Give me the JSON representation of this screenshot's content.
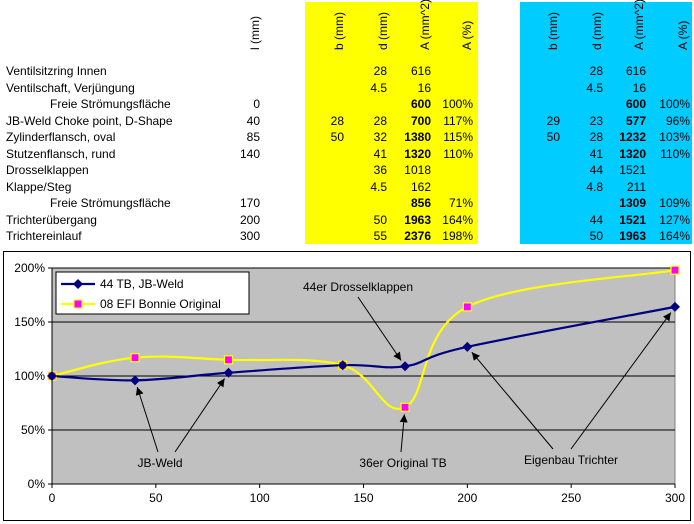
{
  "table": {
    "headers": {
      "l": "l (mm)",
      "b": "b (mm)",
      "d": "d (mm)",
      "a": "A (mm^2)",
      "ap": "A (%)",
      "b2": "b (mm)",
      "d2": "d (mm)",
      "a2": "A (mm^2)",
      "ap2": "A (%)"
    },
    "rows": [
      {
        "label": "Ventilsitzring Innen",
        "indent": false,
        "l": "",
        "b": "",
        "d": "28",
        "a": "616",
        "a_bold": false,
        "ap": "",
        "b2": "",
        "d2": "28",
        "a2": "616",
        "a2_bold": false,
        "ap2": ""
      },
      {
        "label": "Ventilschaft, Verjüngung",
        "indent": false,
        "l": "",
        "b": "",
        "d": "4.5",
        "a": "16",
        "a_bold": false,
        "ap": "",
        "b2": "",
        "d2": "4.5",
        "a2": "16",
        "a2_bold": false,
        "ap2": ""
      },
      {
        "label": "Freie Strömungsfläche",
        "indent": true,
        "l": "0",
        "b": "",
        "d": "",
        "a": "600",
        "a_bold": true,
        "ap": "100%",
        "b2": "",
        "d2": "",
        "a2": "600",
        "a2_bold": true,
        "ap2": "100%"
      },
      {
        "label": "JB-Weld Choke point, D-Shape",
        "indent": false,
        "l": "40",
        "b": "28",
        "d": "28",
        "a": "700",
        "a_bold": true,
        "ap": "117%",
        "b2": "29",
        "d2": "23",
        "a2": "577",
        "a2_bold": true,
        "ap2": "96%"
      },
      {
        "label": "Zylinderflansch, oval",
        "indent": false,
        "l": "85",
        "b": "50",
        "d": "32",
        "a": "1380",
        "a_bold": true,
        "ap": "115%",
        "b2": "50",
        "d2": "28",
        "a2": "1232",
        "a2_bold": true,
        "ap2": "103%"
      },
      {
        "label": "Stutzenflansch, rund",
        "indent": false,
        "l": "140",
        "b": "",
        "d": "41",
        "a": "1320",
        "a_bold": true,
        "ap": "110%",
        "b2": "",
        "d2": "41",
        "a2": "1320",
        "a2_bold": true,
        "ap2": "110%"
      },
      {
        "label": "Drosselklappen",
        "indent": false,
        "l": "",
        "b": "",
        "d": "36",
        "a": "1018",
        "a_bold": false,
        "ap": "",
        "b2": "",
        "d2": "44",
        "a2": "1521",
        "a2_bold": false,
        "ap2": ""
      },
      {
        "label": "Klappe/Steg",
        "indent": false,
        "l": "",
        "b": "",
        "d": "4.5",
        "a": "162",
        "a_bold": false,
        "ap": "",
        "b2": "",
        "d2": "4.8",
        "a2": "211",
        "a2_bold": false,
        "ap2": ""
      },
      {
        "label": "Freie Strömungsfläche",
        "indent": true,
        "l": "170",
        "b": "",
        "d": "",
        "a": "856",
        "a_bold": true,
        "ap": "71%",
        "b2": "",
        "d2": "",
        "a2": "1309",
        "a2_bold": true,
        "ap2": "109%"
      },
      {
        "label": "Trichterübergang",
        "indent": false,
        "l": "200",
        "b": "",
        "d": "50",
        "a": "1963",
        "a_bold": true,
        "ap": "164%",
        "b2": "",
        "d2": "44",
        "a2": "1521",
        "a2_bold": true,
        "ap2": "127%"
      },
      {
        "label": "Trichtereinlauf",
        "indent": false,
        "l": "300",
        "b": "",
        "d": "55",
        "a": "2376",
        "a_bold": true,
        "ap": "198%",
        "b2": "",
        "d2": "50",
        "a2": "1963",
        "a2_bold": true,
        "ap2": "164%"
      }
    ]
  },
  "chart_data": {
    "type": "line",
    "title": "",
    "xlabel": "",
    "ylabel": "",
    "xlim": [
      0,
      300
    ],
    "ylim": [
      0,
      200
    ],
    "xticks": [
      "0",
      "50",
      "100",
      "150",
      "200",
      "250",
      "300"
    ],
    "yticks": [
      "0%",
      "50%",
      "100%",
      "150%",
      "200%"
    ],
    "grid": true,
    "legend": "top-left",
    "colors": {
      "plot_bg": "#c0c0c0",
      "series1": "#000080",
      "series2": "#ffff00",
      "marker2": "#ff00ff"
    },
    "series": [
      {
        "name": "44 TB, JB-Weld",
        "x": [
          0,
          40,
          85,
          140,
          170,
          200,
          300
        ],
        "y": [
          100,
          96,
          103,
          110,
          109,
          127,
          164
        ]
      },
      {
        "name": "08 EFI Bonnie Original",
        "x": [
          0,
          40,
          85,
          140,
          170,
          200,
          300
        ],
        "y": [
          100,
          117,
          115,
          110,
          71,
          164,
          198
        ]
      }
    ],
    "annotations": [
      {
        "text": "44er Drosselklappen",
        "targets": [
          [
            170,
            109
          ]
        ]
      },
      {
        "text": "JB-Weld",
        "targets": [
          [
            40,
            96
          ],
          [
            85,
            103
          ]
        ]
      },
      {
        "text": "36er Original TB",
        "targets": [
          [
            170,
            71
          ]
        ]
      },
      {
        "text": "Eigenbau Trichter",
        "targets": [
          [
            200,
            127
          ],
          [
            300,
            164
          ]
        ]
      }
    ]
  }
}
